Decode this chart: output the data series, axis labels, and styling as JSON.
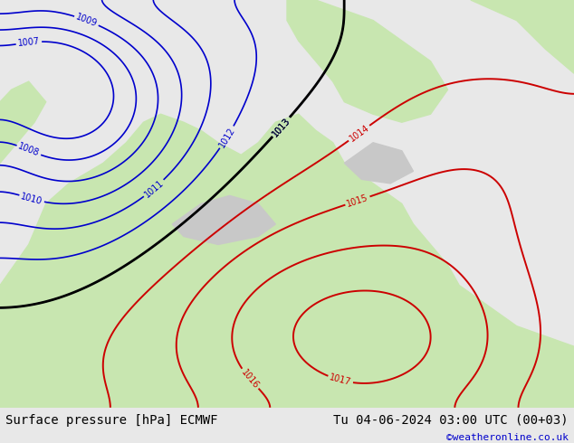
{
  "title_left": "Surface pressure [hPa] ECMWF",
  "title_right": "Tu 04-06-2024 03:00 UTC (00+03)",
  "credit": "©weatheronline.co.uk",
  "bg_color": "#e8e8e8",
  "land_color": "#c8e6b0",
  "sea_color": "#dce8f0",
  "blue_contour_color": "#0000cc",
  "red_contour_color": "#cc0000",
  "black_contour_color": "#000000",
  "gray_land_color": "#c0c0c0",
  "bottom_bar_color": "#ffffff",
  "bottom_text_color": "#000000",
  "credit_color": "#0000cc",
  "figsize": [
    6.34,
    4.9
  ],
  "dpi": 100,
  "blue_levels": [
    1007,
    1008,
    1009,
    1010,
    1011,
    1012,
    1013
  ],
  "red_levels": [
    1014,
    1015,
    1016,
    1017
  ],
  "black_levels": [
    1013
  ]
}
